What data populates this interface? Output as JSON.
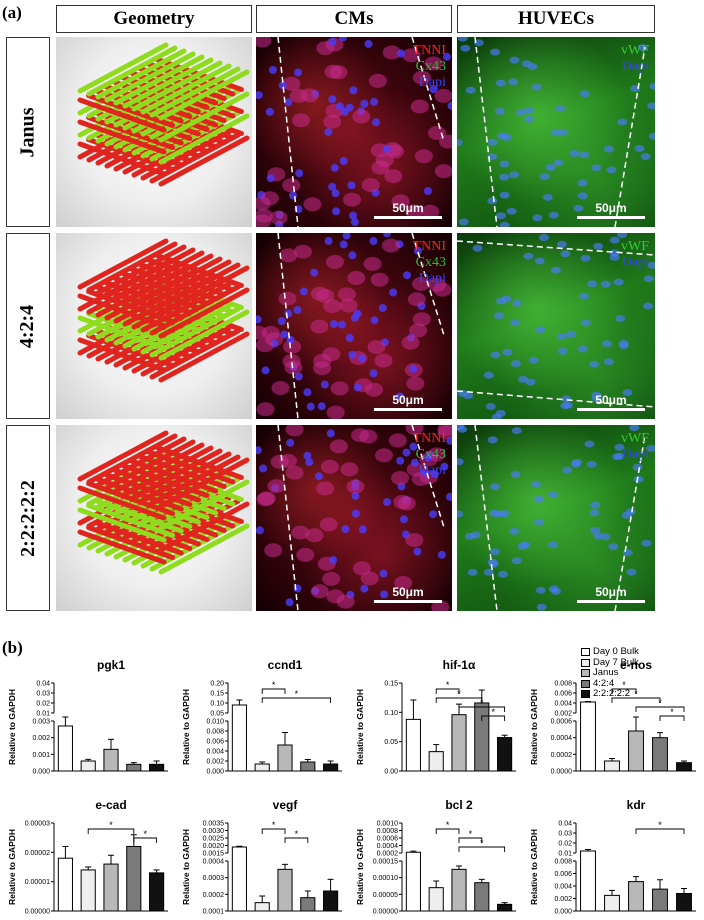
{
  "panel_a": {
    "label": "(a)",
    "column_headers": [
      "Geometry",
      "CMs",
      "HUVECs"
    ],
    "row_headers": [
      "Janus",
      "4:2:4",
      "2:2:2:2:2"
    ],
    "cm_stains": [
      "TNNI",
      "Cx43",
      "Dapi"
    ],
    "huvec_stains": [
      "vWF",
      "Dapi"
    ],
    "scale_bar": "50μm",
    "colors": {
      "red_fiber": "#e0241e",
      "green_fiber": "#8fdc1f",
      "tnni": "#ff2020",
      "cx43": "#2fbf2f",
      "dapi": "#2233ff",
      "vwf": "#30d030"
    }
  },
  "panel_b": {
    "label": "(b)",
    "ylabel": "Relative to GAPDH",
    "legend": [
      "Day 0 Bulk",
      "Day 7 Bulk",
      "Janus",
      "4:2:4",
      "2:2:2:2:2"
    ],
    "significance_mark": "*"
  },
  "chart_data": [
    {
      "type": "bar",
      "title": "pgk1",
      "categories": [
        "Day 0 Bulk",
        "Day 7 Bulk",
        "Janus",
        "4:2:4",
        "2:2:2:2:2"
      ],
      "values": [
        0.0027,
        0.0006,
        0.0013,
        0.0004,
        0.0004
      ],
      "errors": [
        0.0005,
        0.0001,
        0.0006,
        0.0001,
        0.0002
      ],
      "ylabel": "Relative to GAPDH",
      "broken_axis": true,
      "ticks_low": [
        "0.000",
        "0.001",
        "0.002",
        "0.003"
      ],
      "ticks_high": [
        "0.01",
        "0.02",
        "0.03",
        "0.04"
      ],
      "significance": []
    },
    {
      "type": "bar",
      "title": "ccnd1",
      "categories": [
        "Day 0 Bulk",
        "Day 7 Bulk",
        "Janus",
        "4:2:4",
        "2:2:2:2:2"
      ],
      "values": [
        0.09,
        0.0014,
        0.0052,
        0.0018,
        0.0014
      ],
      "errors": [
        0.025,
        0.0004,
        0.0025,
        0.0005,
        0.0006
      ],
      "ylabel": "Relative to GAPDH",
      "broken_axis": true,
      "ticks_low": [
        "0.000",
        "0.002",
        "0.004",
        "0.006",
        "0.008",
        "0.010"
      ],
      "ticks_high": [
        "0.05",
        "0.10",
        "0.15",
        "0.20"
      ],
      "significance": [
        [
          "Day 7 Bulk",
          "Janus"
        ],
        [
          "Day 7 Bulk",
          "2:2:2:2:2"
        ]
      ]
    },
    {
      "type": "bar",
      "title": "hif-1α",
      "categories": [
        "Day 0 Bulk",
        "Day 7 Bulk",
        "Janus",
        "4:2:4",
        "2:2:2:2:2"
      ],
      "values": [
        0.088,
        0.033,
        0.096,
        0.116,
        0.057
      ],
      "errors": [
        0.033,
        0.012,
        0.018,
        0.022,
        0.004
      ],
      "ylabel": "Relative to GAPDH",
      "broken_axis": false,
      "ylim": [
        0,
        0.15
      ],
      "ticks": [
        "0.00",
        "0.05",
        "0.10",
        "0.15"
      ],
      "significance": [
        [
          "Day 7 Bulk",
          "Janus"
        ],
        [
          "Day 7 Bulk",
          "4:2:4"
        ],
        [
          "Janus",
          "2:2:2:2:2"
        ],
        [
          "4:2:4",
          "2:2:2:2:2"
        ]
      ]
    },
    {
      "type": "bar",
      "title": "e-nos",
      "categories": [
        "Day 0 Bulk",
        "Day 7 Bulk",
        "Janus",
        "4:2:4",
        "2:2:2:2:2"
      ],
      "values": [
        0.0042,
        0.00012,
        0.00048,
        0.0004,
        0.0001
      ],
      "errors": [
        0.0001,
        3e-05,
        0.00015,
        6e-05,
        2e-05
      ],
      "ylabel": "Relative to GAPDH",
      "broken_axis": true,
      "ticks_low": [
        "0.0000",
        "0.0002",
        "0.0004",
        "0.0006"
      ],
      "ticks_high": [
        "0.002",
        "0.004",
        "0.006",
        "0.008"
      ],
      "significance": [
        [
          "Day 7 Bulk",
          "Janus"
        ],
        [
          "Day 7 Bulk",
          "4:2:4"
        ],
        [
          "Janus",
          "2:2:2:2:2"
        ],
        [
          "4:2:4",
          "2:2:2:2:2"
        ]
      ]
    },
    {
      "type": "bar",
      "title": "e-cad",
      "categories": [
        "Day 0 Bulk",
        "Day 7 Bulk",
        "Janus",
        "4:2:4",
        "2:2:2:2:2"
      ],
      "values": [
        1.8e-05,
        1.4e-05,
        1.6e-05,
        2.2e-05,
        1.3e-05
      ],
      "errors": [
        4e-06,
        1e-06,
        3e-06,
        4e-06,
        1e-06
      ],
      "ylabel": "Relative to GAPDH",
      "broken_axis": false,
      "ylim": [
        0,
        3e-05
      ],
      "ticks": [
        "0.00000",
        "0.00001",
        "0.00002",
        "0.00003"
      ],
      "significance": [
        [
          "Day 7 Bulk",
          "4:2:4"
        ],
        [
          "4:2:4",
          "2:2:2:2:2"
        ]
      ]
    },
    {
      "type": "bar",
      "title": "vegf",
      "categories": [
        "Day 0 Bulk",
        "Day 7 Bulk",
        "Janus",
        "4:2:4",
        "2:2:2:2:2"
      ],
      "values": [
        0.0019,
        0.00015,
        0.00035,
        0.00018,
        0.00022
      ],
      "errors": [
        5e-05,
        4e-05,
        3e-05,
        4e-05,
        7e-05
      ],
      "ylabel": "Relative to GAPDH",
      "broken_axis": true,
      "ticks_low": [
        "0.0001",
        "0.0002",
        "0.0003",
        "0.0004"
      ],
      "ticks_high": [
        "0.0015",
        "0.0020",
        "0.0025",
        "0.0030",
        "0.0035"
      ],
      "significance": [
        [
          "Day 7 Bulk",
          "Janus"
        ],
        [
          "Janus",
          "4:2:4"
        ]
      ]
    },
    {
      "type": "bar",
      "title": "bcl 2",
      "categories": [
        "Day 0 Bulk",
        "Day 7 Bulk",
        "Janus",
        "4:2:4",
        "2:2:2:2:2"
      ],
      "values": [
        0.00022,
        7e-05,
        0.000125,
        8.5e-05,
        2e-05
      ],
      "errors": [
        3e-05,
        2e-05,
        1e-05,
        1e-05,
        5e-06
      ],
      "ylabel": "Relative to GAPDH",
      "broken_axis": true,
      "ticks_low": [
        "0.00000",
        "0.00005",
        "0.00010",
        "0.00015"
      ],
      "ticks_high": [
        "0.0002",
        "0.0004",
        "0.0006",
        "0.0008",
        "0.0010"
      ],
      "significance": [
        [
          "Day 7 Bulk",
          "Janus"
        ],
        [
          "Janus",
          "4:2:4"
        ],
        [
          "Janus",
          "2:2:2:2:2"
        ]
      ]
    },
    {
      "type": "bar",
      "title": "kdr",
      "categories": [
        "Day 0 Bulk",
        "Day 7 Bulk",
        "Janus",
        "4:2:4",
        "2:2:2:2:2"
      ],
      "values": [
        0.012,
        0.0025,
        0.0047,
        0.0035,
        0.0028
      ],
      "errors": [
        0.0015,
        0.0008,
        0.0008,
        0.0015,
        0.0008
      ],
      "ylabel": "Relative to GAPDH",
      "broken_axis": true,
      "ticks_low": [
        "0.000",
        "0.002",
        "0.004",
        "0.006",
        "0.008"
      ],
      "ticks_high": [
        "0.01",
        "0.02",
        "0.03",
        "0.04"
      ],
      "significance": [
        [
          "Janus",
          "2:2:2:2:2"
        ]
      ]
    }
  ]
}
